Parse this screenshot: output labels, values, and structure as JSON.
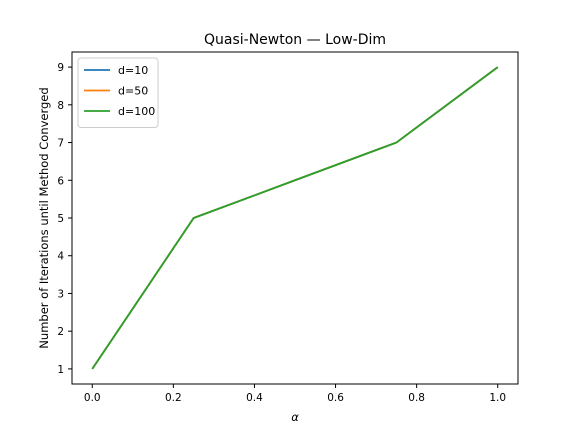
{
  "chart_data": {
    "type": "line",
    "title": "Quasi-Newton — Low-Dim",
    "xlabel": "α",
    "ylabel": "Number of Iterations until Method Converged",
    "x": [
      0.0,
      0.25,
      0.5,
      0.75,
      1.0
    ],
    "series": [
      {
        "name": "d=10",
        "color": "#1f77b4",
        "values": [
          1,
          5,
          6,
          7,
          9
        ]
      },
      {
        "name": "d=50",
        "color": "#ff7f0e",
        "values": [
          1,
          5,
          6,
          7,
          9
        ]
      },
      {
        "name": "d=100",
        "color": "#2ca02c",
        "values": [
          1,
          5,
          6,
          7,
          9
        ]
      }
    ],
    "xlim": [
      -0.05,
      1.05
    ],
    "ylim": [
      0.6,
      9.4
    ],
    "xticks": [
      0.0,
      0.2,
      0.4,
      0.6,
      0.8,
      1.0
    ],
    "xtick_labels": [
      "0.0",
      "0.2",
      "0.4",
      "0.6",
      "0.8",
      "1.0"
    ],
    "yticks": [
      1,
      2,
      3,
      4,
      5,
      6,
      7,
      8,
      9
    ],
    "ytick_labels": [
      "1",
      "2",
      "3",
      "4",
      "5",
      "6",
      "7",
      "8",
      "9"
    ],
    "grid": false,
    "legend_position": "top-left"
  }
}
